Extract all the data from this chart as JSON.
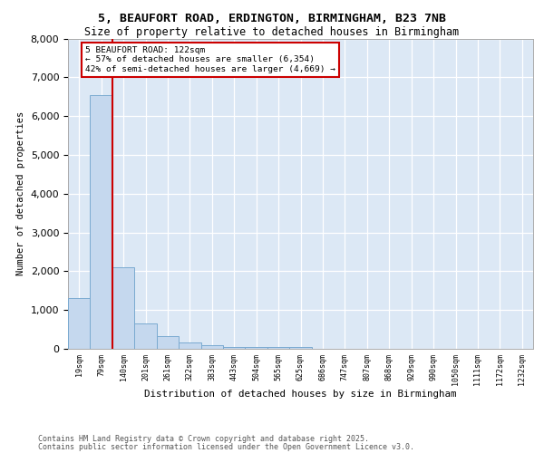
{
  "title_line1": "5, BEAUFORT ROAD, ERDINGTON, BIRMINGHAM, B23 7NB",
  "title_line2": "Size of property relative to detached houses in Birmingham",
  "xlabel": "Distribution of detached houses by size in Birmingham",
  "ylabel": "Number of detached properties",
  "categories": [
    "19sqm",
    "79sqm",
    "140sqm",
    "201sqm",
    "261sqm",
    "322sqm",
    "383sqm",
    "443sqm",
    "504sqm",
    "565sqm",
    "625sqm",
    "686sqm",
    "747sqm",
    "807sqm",
    "868sqm",
    "929sqm",
    "990sqm",
    "1050sqm",
    "1111sqm",
    "1172sqm",
    "1232sqm"
  ],
  "values": [
    1300,
    6550,
    2100,
    660,
    320,
    155,
    90,
    50,
    50,
    50,
    50,
    0,
    0,
    0,
    0,
    0,
    0,
    0,
    0,
    0,
    0
  ],
  "bar_color": "#c5d8ee",
  "bar_edge_color": "#7aaad0",
  "vline_color": "#cc0000",
  "vline_x_idx": 1.5,
  "annotation_text": "5 BEAUFORT ROAD: 122sqm\n← 57% of detached houses are smaller (6,354)\n42% of semi-detached houses are larger (4,669) →",
  "annotation_box_facecolor": "#ffffff",
  "annotation_box_edgecolor": "#cc0000",
  "ylim_max": 8000,
  "plot_bg_color": "#dce8f5",
  "grid_color": "#ffffff",
  "footer_line1": "Contains HM Land Registry data © Crown copyright and database right 2025.",
  "footer_line2": "Contains public sector information licensed under the Open Government Licence v3.0."
}
